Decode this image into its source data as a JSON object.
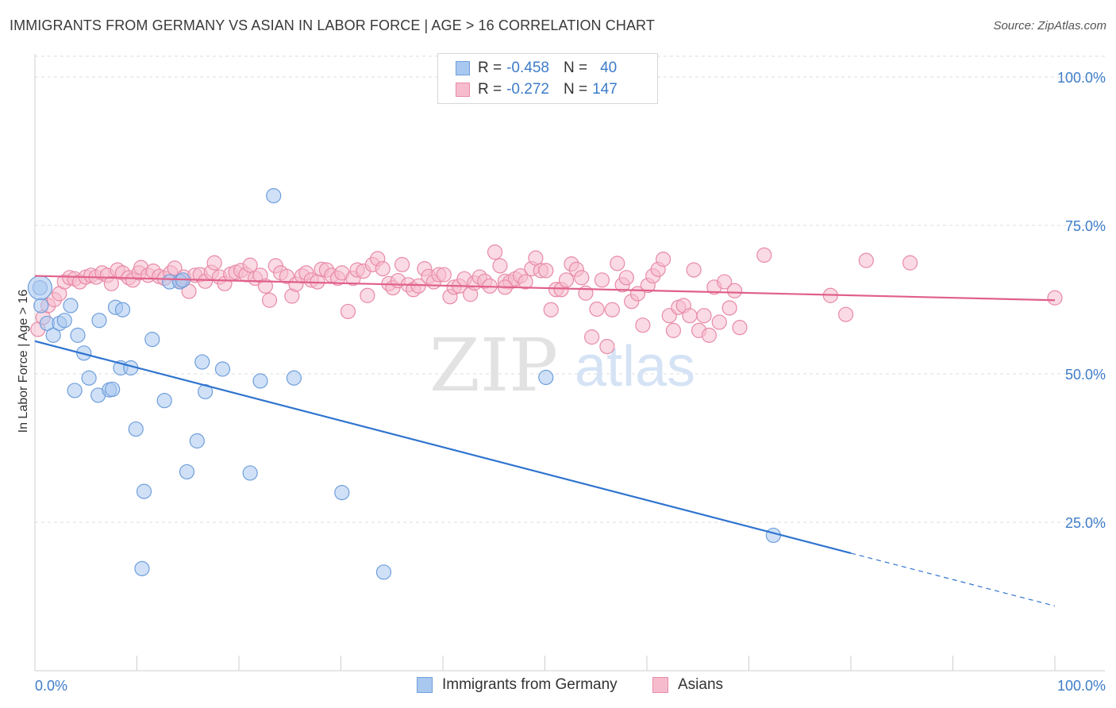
{
  "header": {
    "title": "IMMIGRANTS FROM GERMANY VS ASIAN IN LABOR FORCE | AGE > 16 CORRELATION CHART",
    "source": "Source: ZipAtlas.com"
  },
  "watermark": {
    "zip": "ZIP",
    "atlas": "atlas"
  },
  "legend": {
    "rows": [
      {
        "r_label": "R =",
        "r_value": "-0.458",
        "n_label": "N =",
        "n_value": "40",
        "color": "#a9c8f0",
        "border": "#6f9fdc"
      },
      {
        "r_label": "R =",
        "r_value": "-0.272",
        "n_label": "N =",
        "n_value": "147",
        "color": "#f6bccd",
        "border": "#e88aa7"
      }
    ]
  },
  "bottom_legend": [
    {
      "label": "Immigrants from Germany",
      "color": "#a9c8f0",
      "border": "#6f9fdc"
    },
    {
      "label": "Asians",
      "color": "#f6bccd",
      "border": "#e88aa7"
    }
  ],
  "chart_data": {
    "type": "scatter",
    "title": "IMMIGRANTS FROM GERMANY VS ASIAN IN LABOR FORCE | AGE > 16 CORRELATION CHART",
    "xlabel": "",
    "ylabel": "In Labor Force | Age > 16",
    "xlim": [
      0,
      100
    ],
    "ylim": [
      0,
      105
    ],
    "x_tick_labels": [
      "0.0%",
      "100.0%"
    ],
    "y_ticks": [
      25,
      50,
      75,
      100
    ],
    "y_tick_labels": [
      "25.0%",
      "50.0%",
      "75.0%",
      "100.0%"
    ],
    "grid": true,
    "legend_position": "top-center",
    "series": [
      {
        "name": "Immigrants from Germany",
        "color": "#6f9fdc",
        "fill": "#a9c8f0",
        "line_color": "#2f74cf",
        "trend": {
          "x": [
            0,
            80
          ],
          "y": [
            55.5,
            19.8
          ],
          "dashed_to": [
            100,
            10.9
          ]
        },
        "points": [
          [
            0.5,
            64.5
          ],
          [
            0.6,
            61.5
          ],
          [
            1.2,
            58.5
          ],
          [
            1.8,
            56.5
          ],
          [
            2.4,
            58.5
          ],
          [
            2.9,
            59
          ],
          [
            3.5,
            61.5
          ],
          [
            4.2,
            56.5
          ],
          [
            4.8,
            53.5
          ],
          [
            5.3,
            49.3
          ],
          [
            3.9,
            47.2
          ],
          [
            6.2,
            46.4
          ],
          [
            6.3,
            59
          ],
          [
            7.3,
            47.3
          ],
          [
            7.6,
            47.4
          ],
          [
            7.9,
            61.2
          ],
          [
            8.4,
            51
          ],
          [
            8.6,
            60.8
          ],
          [
            9.4,
            51
          ],
          [
            9.9,
            40.7
          ],
          [
            10.7,
            30.2
          ],
          [
            10.5,
            17.2
          ],
          [
            11.5,
            55.8
          ],
          [
            12.7,
            45.5
          ],
          [
            13.2,
            65.5
          ],
          [
            14.2,
            65.5
          ],
          [
            14.5,
            65.8
          ],
          [
            14.9,
            33.5
          ],
          [
            15.9,
            38.7
          ],
          [
            16.4,
            52
          ],
          [
            16.7,
            47
          ],
          [
            18.4,
            50.8
          ],
          [
            21.1,
            33.3
          ],
          [
            22.1,
            48.8
          ],
          [
            23.4,
            80
          ],
          [
            25.4,
            49.3
          ],
          [
            30.1,
            30
          ],
          [
            34.2,
            16.6
          ],
          [
            50.1,
            49.4
          ],
          [
            72.4,
            22.8
          ]
        ]
      },
      {
        "name": "Asians",
        "color": "#e88aa7",
        "fill": "#f6bccd",
        "line_color": "#e0608a",
        "trend": {
          "x": [
            0,
            100
          ],
          "y": [
            66.5,
            62.4
          ]
        },
        "points": [
          [
            0.3,
            57.5
          ],
          [
            0.8,
            59.5
          ],
          [
            1.3,
            61.5
          ],
          [
            1.9,
            62.5
          ],
          [
            2.4,
            63.5
          ],
          [
            2.9,
            65.5
          ],
          [
            3.4,
            66.2
          ],
          [
            3.9,
            66
          ],
          [
            4.4,
            65.5
          ],
          [
            5.0,
            66.3
          ],
          [
            5.5,
            66.6
          ],
          [
            6.0,
            66.3
          ],
          [
            6.6,
            67
          ],
          [
            7.1,
            66.6
          ],
          [
            7.5,
            65.2
          ],
          [
            8.1,
            67.5
          ],
          [
            8.6,
            67
          ],
          [
            9.2,
            66.2
          ],
          [
            9.6,
            65.8
          ],
          [
            10.2,
            67
          ],
          [
            10.4,
            67.9
          ],
          [
            11.1,
            66.6
          ],
          [
            11.6,
            67.3
          ],
          [
            12.2,
            66.4
          ],
          [
            12.7,
            66.1
          ],
          [
            13.3,
            67
          ],
          [
            13.7,
            67.8
          ],
          [
            14.3,
            65.6
          ],
          [
            14.6,
            66.3
          ],
          [
            15.1,
            63.9
          ],
          [
            15.7,
            66.6
          ],
          [
            16.2,
            66.7
          ],
          [
            16.7,
            65.6
          ],
          [
            17.3,
            67.1
          ],
          [
            17.6,
            68.7
          ],
          [
            18.1,
            66.3
          ],
          [
            18.6,
            65.2
          ],
          [
            19.2,
            66.8
          ],
          [
            19.7,
            67.1
          ],
          [
            20.2,
            67.4
          ],
          [
            20.7,
            66.7
          ],
          [
            21.1,
            68.3
          ],
          [
            21.6,
            66.1
          ],
          [
            22.1,
            66.6
          ],
          [
            22.6,
            64.8
          ],
          [
            23.0,
            62.4
          ],
          [
            23.6,
            68.2
          ],
          [
            24.1,
            67
          ],
          [
            24.7,
            66.4
          ],
          [
            25.2,
            63.1
          ],
          [
            25.6,
            65.1
          ],
          [
            26.2,
            66.5
          ],
          [
            26.6,
            67
          ],
          [
            27.1,
            65.8
          ],
          [
            27.7,
            65.5
          ],
          [
            28.1,
            67.6
          ],
          [
            28.6,
            67.5
          ],
          [
            29.1,
            66.6
          ],
          [
            29.7,
            66.1
          ],
          [
            30.1,
            67
          ],
          [
            30.7,
            60.5
          ],
          [
            31.2,
            66.1
          ],
          [
            31.6,
            67.5
          ],
          [
            32.2,
            67.3
          ],
          [
            32.6,
            63.2
          ],
          [
            33.1,
            68.4
          ],
          [
            33.6,
            69.4
          ],
          [
            34.1,
            67.7
          ],
          [
            34.7,
            65.2
          ],
          [
            35.1,
            64.5
          ],
          [
            35.6,
            65.7
          ],
          [
            36.0,
            68.4
          ],
          [
            36.6,
            65
          ],
          [
            37.1,
            64.2
          ],
          [
            37.6,
            64.8
          ],
          [
            38.2,
            67.7
          ],
          [
            38.6,
            66.4
          ],
          [
            39.1,
            65.5
          ],
          [
            39.6,
            66.7
          ],
          [
            40.1,
            66.7
          ],
          [
            40.7,
            63
          ],
          [
            41.1,
            64.6
          ],
          [
            41.6,
            64.8
          ],
          [
            42.1,
            66
          ],
          [
            42.7,
            63.4
          ],
          [
            43.1,
            65.3
          ],
          [
            43.6,
            66.3
          ],
          [
            44.1,
            65.6
          ],
          [
            44.6,
            64.8
          ],
          [
            45.1,
            70.5
          ],
          [
            45.6,
            68.2
          ],
          [
            46.1,
            65.6
          ],
          [
            46.6,
            65.5
          ],
          [
            47.1,
            66
          ],
          [
            47.6,
            66.5
          ],
          [
            48.1,
            65.5
          ],
          [
            48.7,
            67.7
          ],
          [
            49.1,
            69.5
          ],
          [
            49.6,
            67.4
          ],
          [
            50.1,
            67.4
          ],
          [
            50.6,
            60.8
          ],
          [
            51.1,
            64.2
          ],
          [
            51.6,
            64.2
          ],
          [
            52.1,
            65.8
          ],
          [
            52.6,
            68.5
          ],
          [
            53.1,
            67.6
          ],
          [
            53.6,
            66.2
          ],
          [
            54.0,
            63.6
          ],
          [
            54.6,
            56.2
          ],
          [
            55.1,
            60.9
          ],
          [
            55.6,
            65.8
          ],
          [
            56.1,
            54.6
          ],
          [
            56.6,
            60.8
          ],
          [
            57.1,
            68.6
          ],
          [
            57.6,
            65
          ],
          [
            58.0,
            66.2
          ],
          [
            58.5,
            62.2
          ],
          [
            59.1,
            63.5
          ],
          [
            59.6,
            58.2
          ],
          [
            60.1,
            64.9
          ],
          [
            60.6,
            66.5
          ],
          [
            61.1,
            67.6
          ],
          [
            61.6,
            69.3
          ],
          [
            62.2,
            59.8
          ],
          [
            62.6,
            57.3
          ],
          [
            63.1,
            61.2
          ],
          [
            63.6,
            61.5
          ],
          [
            64.2,
            59.8
          ],
          [
            64.6,
            67.5
          ],
          [
            65.1,
            57.3
          ],
          [
            65.6,
            59.8
          ],
          [
            66.1,
            56.5
          ],
          [
            66.6,
            64.6
          ],
          [
            67.1,
            58.7
          ],
          [
            67.6,
            65.5
          ],
          [
            68.1,
            61.1
          ],
          [
            68.6,
            64
          ],
          [
            69.1,
            57.8
          ],
          [
            71.5,
            70
          ],
          [
            78.0,
            63.2
          ],
          [
            79.5,
            60
          ],
          [
            81.5,
            69.1
          ],
          [
            85.8,
            68.7
          ],
          [
            100,
            62.8
          ],
          [
            46.1,
            64.6
          ]
        ]
      }
    ]
  }
}
